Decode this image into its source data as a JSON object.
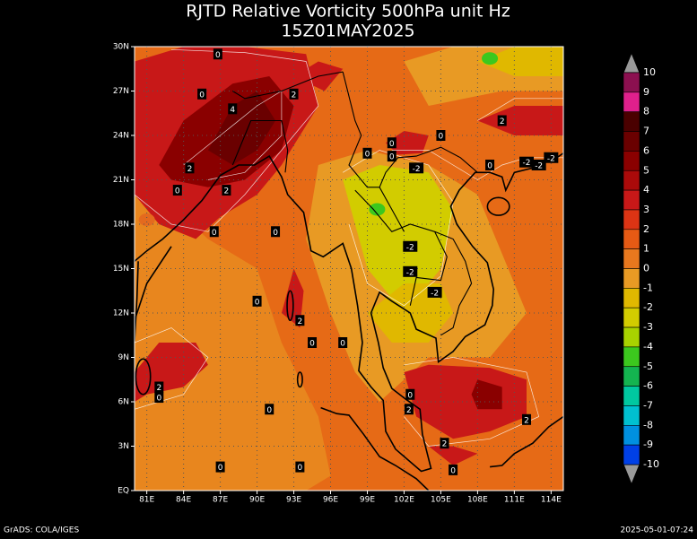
{
  "title": "RJTD Relative Vorticity 500hPa unit Hz",
  "subtitle": "15Z01MAY2025",
  "lat_labels": [
    "30N",
    "27N",
    "24N",
    "21N",
    "18N",
    "15N",
    "12N",
    "9N",
    "6N",
    "3N",
    "EQ"
  ],
  "lon_labels": [
    "81E",
    "84E",
    "87E",
    "90E",
    "93E",
    "96E",
    "99E",
    "102E",
    "105E",
    "108E",
    "111E",
    "114E"
  ],
  "colorbar": {
    "levels": [
      10,
      9,
      8,
      7,
      6,
      5,
      4,
      3,
      2,
      1,
      0,
      -1,
      -2,
      -3,
      -4,
      -5,
      -6,
      -7,
      -8,
      -9,
      -10
    ],
    "colors": [
      "#8c1050",
      "#e0208c",
      "#4a0000",
      "#6a0000",
      "#8a0000",
      "#aa0a0a",
      "#c81818",
      "#dc3414",
      "#e65a14",
      "#e8781e",
      "#e89a24",
      "#e0b800",
      "#d2cc00",
      "#a8d200",
      "#3cc81e",
      "#14b450",
      "#00c8a0",
      "#00c0d0",
      "#0090e0",
      "#0040e6"
    ]
  },
  "contour_labels": [
    0,
    0,
    2,
    4,
    0,
    0,
    2,
    0,
    2,
    0,
    0,
    -2,
    -2,
    0,
    2,
    -2,
    -2,
    0,
    0,
    0,
    0,
    -2,
    -2,
    -2,
    0,
    0,
    2,
    0,
    2,
    0,
    2,
    2,
    0,
    0,
    0,
    2
  ],
  "footer_left": "GrADS: COLA/IGES",
  "footer_right": "2025-05-01-07:24"
}
